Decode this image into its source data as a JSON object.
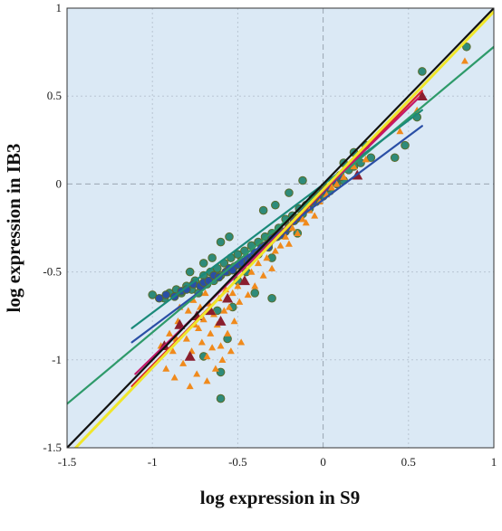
{
  "chart_data": {
    "type": "scatter",
    "title": "",
    "xlabel": "log expression in S9",
    "ylabel": "log expression in IB3",
    "xlim": [
      -1.5,
      1
    ],
    "ylim": [
      -1.5,
      1
    ],
    "x_ticks": [
      "-1.5",
      "-1",
      "-0.5",
      "0",
      "0.5",
      "1"
    ],
    "y_ticks": [
      "-1.5",
      "-1",
      "-0.5",
      "0",
      "0.5",
      "1"
    ],
    "grid": "dashed lines at 0 on both axes; dotted minor gridlines",
    "background_color": "#dbe9f5",
    "series": [
      {
        "marker": "circle",
        "color": "#2e8b7a",
        "points": [
          [
            -1.0,
            -0.63
          ],
          [
            -0.93,
            -0.65
          ],
          [
            -0.9,
            -0.62
          ],
          [
            -0.86,
            -0.6
          ],
          [
            -0.83,
            -0.62
          ],
          [
            -0.8,
            -0.58
          ],
          [
            -0.77,
            -0.6
          ],
          [
            -0.75,
            -0.55
          ],
          [
            -0.73,
            -0.62
          ],
          [
            -0.7,
            -0.52
          ],
          [
            -0.68,
            -0.57
          ],
          [
            -0.66,
            -0.5
          ],
          [
            -0.64,
            -0.55
          ],
          [
            -0.62,
            -0.48
          ],
          [
            -0.6,
            -0.52
          ],
          [
            -0.58,
            -0.45
          ],
          [
            -0.56,
            -0.5
          ],
          [
            -0.54,
            -0.42
          ],
          [
            -0.52,
            -0.47
          ],
          [
            -0.5,
            -0.4
          ],
          [
            -0.48,
            -0.44
          ],
          [
            -0.46,
            -0.38
          ],
          [
            -0.44,
            -0.42
          ],
          [
            -0.42,
            -0.35
          ],
          [
            -0.4,
            -0.4
          ],
          [
            -0.38,
            -0.33
          ],
          [
            -0.36,
            -0.37
          ],
          [
            -0.34,
            -0.3
          ],
          [
            -0.32,
            -0.34
          ],
          [
            -0.3,
            -0.28
          ],
          [
            -0.28,
            -0.3
          ],
          [
            -0.26,
            -0.25
          ],
          [
            -0.24,
            -0.28
          ],
          [
            -0.22,
            -0.2
          ],
          [
            -0.2,
            -0.24
          ],
          [
            -0.18,
            -0.18
          ],
          [
            -0.16,
            -0.2
          ],
          [
            -0.14,
            -0.14
          ],
          [
            -0.12,
            -0.17
          ],
          [
            -0.1,
            -0.12
          ],
          [
            -0.08,
            -0.14
          ],
          [
            -0.06,
            -0.08
          ],
          [
            -0.04,
            -0.1
          ],
          [
            -0.02,
            -0.05
          ],
          [
            0.0,
            -0.07
          ],
          [
            0.02,
            -0.02
          ],
          [
            0.04,
            -0.04
          ],
          [
            0.06,
            0.02
          ],
          [
            0.08,
            0.0
          ],
          [
            0.1,
            0.05
          ],
          [
            0.12,
            0.02
          ],
          [
            0.15,
            0.08
          ],
          [
            0.18,
            0.1
          ],
          [
            0.22,
            0.12
          ],
          [
            0.28,
            0.15
          ],
          [
            0.42,
            0.15
          ],
          [
            0.48,
            0.22
          ],
          [
            0.55,
            0.38
          ],
          [
            0.58,
            0.64
          ],
          [
            0.84,
            0.78
          ],
          [
            -0.56,
            -0.88
          ],
          [
            -0.6,
            -1.07
          ],
          [
            -0.6,
            -1.22
          ],
          [
            -0.7,
            -0.98
          ],
          [
            -0.5,
            -0.55
          ],
          [
            -0.45,
            -0.5
          ],
          [
            -0.3,
            -0.42
          ],
          [
            -0.15,
            -0.28
          ],
          [
            -0.3,
            -0.65
          ],
          [
            -0.4,
            -0.62
          ],
          [
            -0.53,
            -0.7
          ],
          [
            -0.62,
            -0.72
          ],
          [
            -0.35,
            -0.15
          ],
          [
            -0.28,
            -0.12
          ],
          [
            -0.2,
            -0.05
          ],
          [
            -0.12,
            0.02
          ],
          [
            -0.6,
            -0.33
          ],
          [
            -0.55,
            -0.3
          ],
          [
            -0.65,
            -0.42
          ],
          [
            -0.7,
            -0.45
          ],
          [
            -0.78,
            -0.5
          ],
          [
            0.12,
            0.12
          ],
          [
            0.18,
            0.18
          ],
          [
            0.25,
            0.22
          ]
        ]
      },
      {
        "marker": "circle",
        "color": "#2a4fa6",
        "points": [
          [
            -0.96,
            -0.65
          ],
          [
            -0.92,
            -0.63
          ],
          [
            -0.87,
            -0.64
          ],
          [
            -0.83,
            -0.61
          ],
          [
            -0.8,
            -0.6
          ],
          [
            -0.76,
            -0.57
          ],
          [
            -0.72,
            -0.58
          ],
          [
            -0.7,
            -0.56
          ],
          [
            -0.67,
            -0.55
          ],
          [
            -0.64,
            -0.52
          ],
          [
            -0.61,
            -0.53
          ],
          [
            -0.57,
            -0.5
          ],
          [
            -0.55,
            -0.48
          ],
          [
            -0.53,
            -0.49
          ],
          [
            -0.5,
            -0.46
          ],
          [
            -0.47,
            -0.45
          ],
          [
            -0.44,
            -0.44
          ],
          [
            -0.42,
            -0.42
          ],
          [
            -0.4,
            -0.39
          ],
          [
            -0.38,
            -0.4
          ],
          [
            -0.36,
            -0.36
          ],
          [
            -0.34,
            -0.35
          ],
          [
            -0.32,
            -0.36
          ],
          [
            -0.3,
            -0.31
          ],
          [
            -0.27,
            -0.3
          ],
          [
            -0.25,
            -0.29
          ],
          [
            -0.22,
            -0.27
          ],
          [
            -0.2,
            -0.25
          ],
          [
            -0.17,
            -0.21
          ],
          [
            -0.14,
            -0.19
          ],
          [
            -0.12,
            -0.15
          ],
          [
            -0.09,
            -0.13
          ],
          [
            -0.06,
            -0.1
          ],
          [
            -0.03,
            -0.07
          ],
          [
            0.0,
            -0.04
          ],
          [
            0.03,
            -0.02
          ],
          [
            0.07,
            0.02
          ],
          [
            0.1,
            0.04
          ]
        ]
      },
      {
        "marker": "triangle",
        "color": "#f08a1c",
        "points": [
          [
            -0.95,
            -0.92
          ],
          [
            -0.9,
            -0.85
          ],
          [
            -0.88,
            -0.95
          ],
          [
            -0.85,
            -0.78
          ],
          [
            -0.82,
            -1.02
          ],
          [
            -0.8,
            -0.88
          ],
          [
            -0.79,
            -0.72
          ],
          [
            -0.77,
            -0.95
          ],
          [
            -0.75,
            -0.8
          ],
          [
            -0.74,
            -1.08
          ],
          [
            -0.72,
            -0.7
          ],
          [
            -0.71,
            -0.9
          ],
          [
            -0.7,
            -0.77
          ],
          [
            -0.68,
            -0.98
          ],
          [
            -0.67,
            -0.68
          ],
          [
            -0.66,
            -0.85
          ],
          [
            -0.64,
            -0.74
          ],
          [
            -0.63,
            -1.05
          ],
          [
            -0.62,
            -0.8
          ],
          [
            -0.61,
            -0.65
          ],
          [
            -0.6,
            -0.92
          ],
          [
            -0.58,
            -0.72
          ],
          [
            -0.57,
            -0.6
          ],
          [
            -0.56,
            -0.85
          ],
          [
            -0.55,
            -0.7
          ],
          [
            -0.53,
            -0.62
          ],
          [
            -0.52,
            -0.78
          ],
          [
            -0.5,
            -0.58
          ],
          [
            -0.49,
            -0.67
          ],
          [
            -0.48,
            -0.9
          ],
          [
            -0.46,
            -0.55
          ],
          [
            -0.44,
            -0.63
          ],
          [
            -0.42,
            -0.5
          ],
          [
            -0.4,
            -0.58
          ],
          [
            -0.38,
            -0.45
          ],
          [
            -0.35,
            -0.52
          ],
          [
            -0.33,
            -0.42
          ],
          [
            -0.3,
            -0.48
          ],
          [
            -0.28,
            -0.38
          ],
          [
            -0.25,
            -0.35
          ],
          [
            -0.22,
            -0.3
          ],
          [
            -0.2,
            -0.34
          ],
          [
            -0.18,
            -0.25
          ],
          [
            -0.15,
            -0.28
          ],
          [
            -0.12,
            -0.2
          ],
          [
            -0.1,
            -0.22
          ],
          [
            -0.08,
            -0.15
          ],
          [
            -0.05,
            -0.18
          ],
          [
            -0.02,
            -0.1
          ],
          [
            0.02,
            -0.06
          ],
          [
            0.05,
            -0.02
          ],
          [
            0.08,
            0.0
          ],
          [
            0.12,
            0.04
          ],
          [
            0.18,
            0.1
          ],
          [
            0.25,
            0.14
          ],
          [
            0.45,
            0.3
          ],
          [
            0.55,
            0.42
          ],
          [
            0.83,
            0.7
          ],
          [
            -0.87,
            -1.1
          ],
          [
            -0.78,
            -1.15
          ],
          [
            -0.68,
            -1.12
          ],
          [
            -0.92,
            -1.05
          ],
          [
            -0.84,
            -0.7
          ],
          [
            -0.76,
            -0.66
          ],
          [
            -0.69,
            -0.62
          ],
          [
            -0.65,
            -0.93
          ],
          [
            -0.59,
            -1.0
          ],
          [
            -0.54,
            -0.95
          ],
          [
            -0.73,
            -0.82
          ],
          [
            -0.86,
            -0.88
          ]
        ]
      },
      {
        "marker": "triangle",
        "color": "#8a1e2e",
        "points": [
          [
            -0.93,
            -0.92
          ],
          [
            -0.84,
            -0.8
          ],
          [
            -0.78,
            -0.98
          ],
          [
            -0.74,
            -0.75
          ],
          [
            -0.66,
            -0.72
          ],
          [
            -0.6,
            -0.78
          ],
          [
            -0.56,
            -0.65
          ],
          [
            -0.46,
            -0.55
          ],
          [
            0.2,
            0.05
          ],
          [
            0.58,
            0.5
          ]
        ]
      }
    ],
    "fit_lines": [
      {
        "color": "#2a4fa6",
        "from": [
          -1.12,
          -0.9
        ],
        "to": [
          0.58,
          0.33
        ]
      },
      {
        "color": "#2e9a6a",
        "from": [
          -1.5,
          -1.25
        ],
        "to": [
          1.0,
          0.78
        ]
      },
      {
        "color": "#1a8a7a",
        "from": [
          -1.12,
          -0.82
        ],
        "to": [
          0.58,
          0.42
        ]
      },
      {
        "color": "#d8232a",
        "from": [
          -1.12,
          -1.15
        ],
        "to": [
          0.58,
          0.53
        ]
      },
      {
        "color": "#c2186b",
        "from": [
          -1.1,
          -1.08
        ],
        "to": [
          0.56,
          0.49
        ]
      },
      {
        "color": "#111111",
        "from": [
          -1.5,
          -1.5
        ],
        "to": [
          1.0,
          1.0
        ]
      },
      {
        "color": "#f0e62a",
        "from": [
          -1.45,
          -1.5
        ],
        "to": [
          1.0,
          0.98
        ]
      }
    ]
  }
}
